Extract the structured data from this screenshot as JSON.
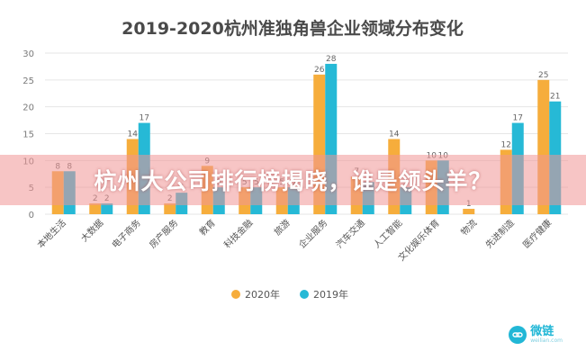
{
  "chart_data": {
    "type": "bar",
    "title": "2019-2020杭州准独角兽企业领域分布变化",
    "xlabel": "",
    "ylabel": "",
    "ylim": [
      0,
      30
    ],
    "yticks": [
      0,
      5,
      10,
      15,
      20,
      25,
      30
    ],
    "grid": true,
    "legend_position": "bottom",
    "categories": [
      "本地生活",
      "大数据",
      "电子商务",
      "房产服务",
      "教育",
      "科技金融",
      "旅游",
      "企业服务",
      "汽车交通",
      "人工智能",
      "文化娱乐体育",
      "物流",
      "先进制造",
      "医疗健康"
    ],
    "series": [
      {
        "name": "2020年",
        "color": "#f6ad3c",
        "values": [
          8,
          2,
          14,
          2,
          9,
          5,
          5,
          26,
          7,
          14,
          10,
          1,
          12,
          25
        ]
      },
      {
        "name": "2019年",
        "color": "#26b9d6",
        "values": [
          8,
          2,
          17,
          4,
          5,
          5,
          5,
          28,
          6,
          5,
          10,
          0,
          17,
          21
        ]
      }
    ]
  },
  "overlay": {
    "headline": "杭州大公司排行榜揭晓，谁是领头羊？"
  },
  "watermark": {
    "brand": "微链",
    "sub": "weilian.com"
  },
  "colors": {
    "series_2020": "#f6ad3c",
    "series_2019": "#26b9d6",
    "grid": "#e6e6e6"
  }
}
